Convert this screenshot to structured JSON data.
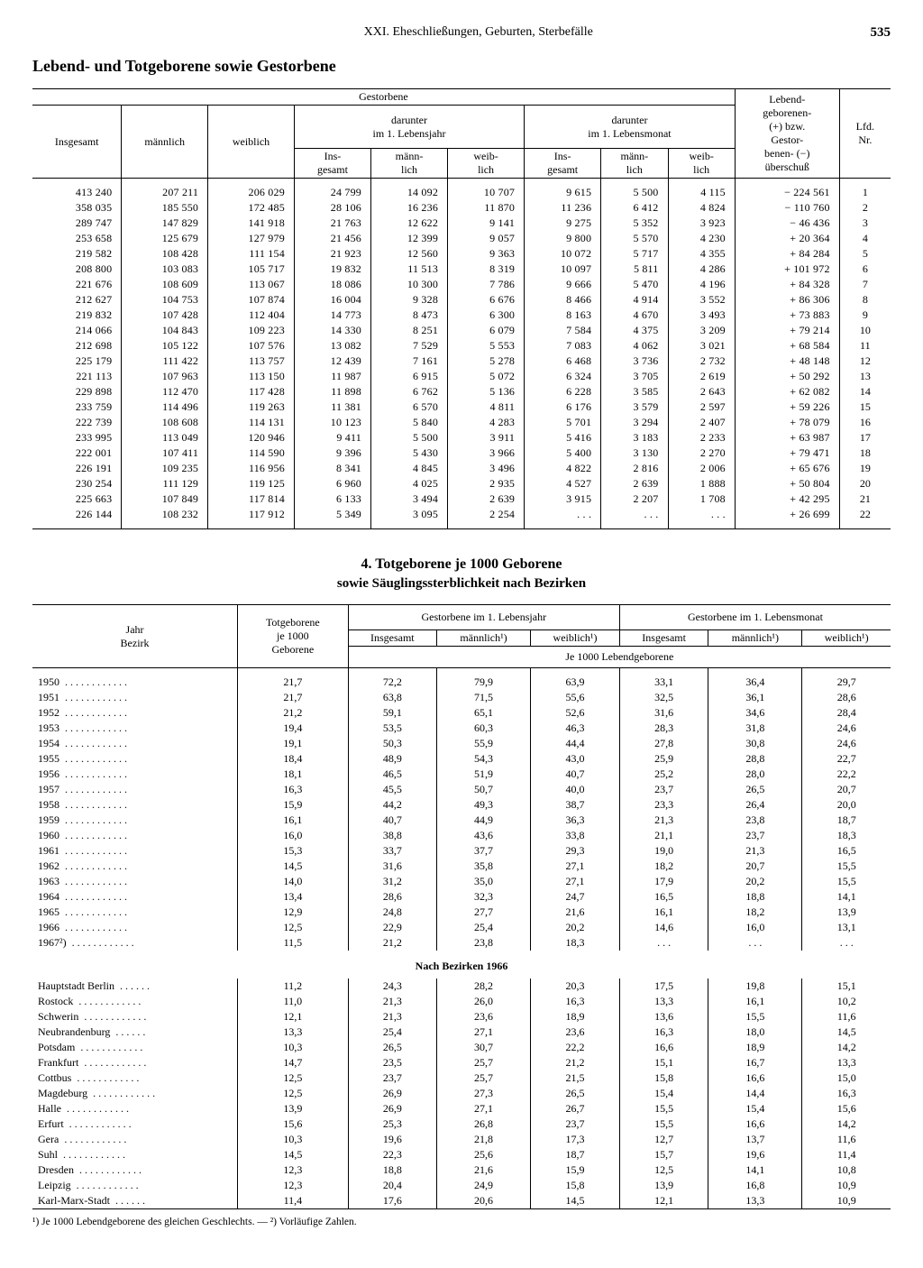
{
  "page": {
    "chapter": "XXI. Eheschließungen, Geburten, Sterbefälle",
    "number": "535",
    "title": "Lebend- und Totgeborene sowie Gestorbene"
  },
  "table1": {
    "headers": {
      "gestorbene": "Gestorbene",
      "insgesamt": "Insgesamt",
      "maennlich": "männlich",
      "weiblich": "weiblich",
      "darunter_jahr": "darunter\nim 1. Lebensjahr",
      "darunter_monat": "darunter\nim 1. Lebensmonat",
      "ins_gesamt": "Ins-\ngesamt",
      "maenn_lich": "männ-\nlich",
      "weib_lich": "weib-\nlich",
      "ueberschuss": "Lebend-\ngeborenen-\n(+) bzw.\nGestor-\nbenen- (−)\nüberschuß",
      "lfd": "Lfd.\nNr."
    },
    "rows": [
      [
        "413 240",
        "207 211",
        "206 029",
        "24 799",
        "14 092",
        "10 707",
        "9 615",
        "5 500",
        "4 115",
        "− 224 561",
        "1"
      ],
      [
        "358 035",
        "185 550",
        "172 485",
        "28 106",
        "16 236",
        "11 870",
        "11 236",
        "6 412",
        "4 824",
        "− 110 760",
        "2"
      ],
      [
        "289 747",
        "147 829",
        "141 918",
        "21 763",
        "12 622",
        "9 141",
        "9 275",
        "5 352",
        "3 923",
        "−  46 436",
        "3"
      ],
      [
        "253 658",
        "125 679",
        "127 979",
        "21 456",
        "12 399",
        "9 057",
        "9 800",
        "5 570",
        "4 230",
        "+  20 364",
        "4"
      ],
      [
        "219 582",
        "108 428",
        "111 154",
        "21 923",
        "12 560",
        "9 363",
        "10 072",
        "5 717",
        "4 355",
        "+  84 284",
        "5"
      ],
      [
        "208 800",
        "103 083",
        "105 717",
        "19 832",
        "11 513",
        "8 319",
        "10 097",
        "5 811",
        "4 286",
        "+ 101 972",
        "6"
      ],
      [
        "221 676",
        "108 609",
        "113 067",
        "18 086",
        "10 300",
        "7 786",
        "9 666",
        "5 470",
        "4 196",
        "+  84 328",
        "7"
      ],
      [
        "212 627",
        "104 753",
        "107 874",
        "16 004",
        "9 328",
        "6 676",
        "8 466",
        "4 914",
        "3 552",
        "+  86 306",
        "8"
      ],
      [
        "219 832",
        "107 428",
        "112 404",
        "14 773",
        "8 473",
        "6 300",
        "8 163",
        "4 670",
        "3 493",
        "+  73 883",
        "9"
      ],
      [
        "214 066",
        "104 843",
        "109 223",
        "14 330",
        "8 251",
        "6 079",
        "7 584",
        "4 375",
        "3 209",
        "+  79 214",
        "10"
      ],
      [
        "212 698",
        "105 122",
        "107 576",
        "13 082",
        "7 529",
        "5 553",
        "7 083",
        "4 062",
        "3 021",
        "+  68 584",
        "11"
      ],
      [
        "225 179",
        "111 422",
        "113 757",
        "12 439",
        "7 161",
        "5 278",
        "6 468",
        "3 736",
        "2 732",
        "+  48 148",
        "12"
      ],
      [
        "221 113",
        "107 963",
        "113 150",
        "11 987",
        "6 915",
        "5 072",
        "6 324",
        "3 705",
        "2 619",
        "+  50 292",
        "13"
      ],
      [
        "229 898",
        "112 470",
        "117 428",
        "11 898",
        "6 762",
        "5 136",
        "6 228",
        "3 585",
        "2 643",
        "+  62 082",
        "14"
      ],
      [
        "233 759",
        "114 496",
        "119 263",
        "11 381",
        "6 570",
        "4 811",
        "6 176",
        "3 579",
        "2 597",
        "+  59 226",
        "15"
      ],
      [
        "222 739",
        "108 608",
        "114 131",
        "10 123",
        "5 840",
        "4 283",
        "5 701",
        "3 294",
        "2 407",
        "+  78 079",
        "16"
      ],
      [
        "233 995",
        "113 049",
        "120 946",
        "9 411",
        "5 500",
        "3 911",
        "5 416",
        "3 183",
        "2 233",
        "+  63 987",
        "17"
      ],
      [
        "222 001",
        "107 411",
        "114 590",
        "9 396",
        "5 430",
        "3 966",
        "5 400",
        "3 130",
        "2 270",
        "+  79 471",
        "18"
      ],
      [
        "226 191",
        "109 235",
        "116 956",
        "8 341",
        "4 845",
        "3 496",
        "4 822",
        "2 816",
        "2 006",
        "+  65 676",
        "19"
      ],
      [
        "230 254",
        "111 129",
        "119 125",
        "6 960",
        "4 025",
        "2 935",
        "4 527",
        "2 639",
        "1 888",
        "+  50 804",
        "20"
      ],
      [
        "225 663",
        "107 849",
        "117 814",
        "6 133",
        "3 494",
        "2 639",
        "3 915",
        "2 207",
        "1 708",
        "+  42 295",
        "21"
      ],
      [
        "226 144",
        "108 232",
        "117 912",
        "5 349",
        "3 095",
        "2 254",
        ". . .",
        ". . .",
        ". . .",
        "+  26 699",
        "22"
      ]
    ]
  },
  "table2": {
    "title1": "4. Totgeborene je 1000 Geborene",
    "title2": "sowie Säuglingssterblichkeit nach Bezirken",
    "headers": {
      "jahr_bezirk": "Jahr\nBezirk",
      "totgeborene": "Totgeborene\nje 1000\nGeborene",
      "gest_jahr": "Gestorbene im 1. Lebensjahr",
      "gest_monat": "Gestorbene im 1. Lebensmonat",
      "insgesamt": "Insgesamt",
      "maennlich": "männlich¹)",
      "weiblich": "weiblich¹)",
      "je1000": "Je 1000 Lebendgeborene"
    },
    "section2_label": "Nach Bezirken 1966",
    "years": [
      [
        "1950",
        "21,7",
        "72,2",
        "79,9",
        "63,9",
        "33,1",
        "36,4",
        "29,7"
      ],
      [
        "1951",
        "21,7",
        "63,8",
        "71,5",
        "55,6",
        "32,5",
        "36,1",
        "28,6"
      ],
      [
        "1952",
        "21,2",
        "59,1",
        "65,1",
        "52,6",
        "31,6",
        "34,6",
        "28,4"
      ],
      [
        "1953",
        "19,4",
        "53,5",
        "60,3",
        "46,3",
        "28,3",
        "31,8",
        "24,6"
      ],
      [
        "1954",
        "19,1",
        "50,3",
        "55,9",
        "44,4",
        "27,8",
        "30,8",
        "24,6"
      ],
      [
        "1955",
        "18,4",
        "48,9",
        "54,3",
        "43,0",
        "25,9",
        "28,8",
        "22,7"
      ],
      [
        "1956",
        "18,1",
        "46,5",
        "51,9",
        "40,7",
        "25,2",
        "28,0",
        "22,2"
      ],
      [
        "1957",
        "16,3",
        "45,5",
        "50,7",
        "40,0",
        "23,7",
        "26,5",
        "20,7"
      ],
      [
        "1958",
        "15,9",
        "44,2",
        "49,3",
        "38,7",
        "23,3",
        "26,4",
        "20,0"
      ],
      [
        "1959",
        "16,1",
        "40,7",
        "44,9",
        "36,3",
        "21,3",
        "23,8",
        "18,7"
      ],
      [
        "1960",
        "16,0",
        "38,8",
        "43,6",
        "33,8",
        "21,1",
        "23,7",
        "18,3"
      ],
      [
        "1961",
        "15,3",
        "33,7",
        "37,7",
        "29,3",
        "19,0",
        "21,3",
        "16,5"
      ],
      [
        "1962",
        "14,5",
        "31,6",
        "35,8",
        "27,1",
        "18,2",
        "20,7",
        "15,5"
      ],
      [
        "1963",
        "14,0",
        "31,2",
        "35,0",
        "27,1",
        "17,9",
        "20,2",
        "15,5"
      ],
      [
        "1964",
        "13,4",
        "28,6",
        "32,3",
        "24,7",
        "16,5",
        "18,8",
        "14,1"
      ],
      [
        "1965",
        "12,9",
        "24,8",
        "27,7",
        "21,6",
        "16,1",
        "18,2",
        "13,9"
      ],
      [
        "1966",
        "12,5",
        "22,9",
        "25,4",
        "20,2",
        "14,6",
        "16,0",
        "13,1"
      ],
      [
        "1967²)",
        "11,5",
        "21,2",
        "23,8",
        "18,3",
        ". . .",
        ". . .",
        ". . ."
      ]
    ],
    "bezirke": [
      [
        "Hauptstadt Berlin",
        "11,2",
        "24,3",
        "28,2",
        "20,3",
        "17,5",
        "19,8",
        "15,1"
      ],
      [
        "Rostock",
        "11,0",
        "21,3",
        "26,0",
        "16,3",
        "13,3",
        "16,1",
        "10,2"
      ],
      [
        "Schwerin",
        "12,1",
        "21,3",
        "23,6",
        "18,9",
        "13,6",
        "15,5",
        "11,6"
      ],
      [
        "Neubrandenburg",
        "13,3",
        "25,4",
        "27,1",
        "23,6",
        "16,3",
        "18,0",
        "14,5"
      ],
      [
        "Potsdam",
        "10,3",
        "26,5",
        "30,7",
        "22,2",
        "16,6",
        "18,9",
        "14,2"
      ],
      [
        "Frankfurt",
        "14,7",
        "23,5",
        "25,7",
        "21,2",
        "15,1",
        "16,7",
        "13,3"
      ],
      [
        "Cottbus",
        "12,5",
        "23,7",
        "25,7",
        "21,5",
        "15,8",
        "16,6",
        "15,0"
      ],
      [
        "Magdeburg",
        "12,5",
        "26,9",
        "27,3",
        "26,5",
        "15,4",
        "14,4",
        "16,3"
      ],
      [
        "Halle",
        "13,9",
        "26,9",
        "27,1",
        "26,7",
        "15,5",
        "15,4",
        "15,6"
      ],
      [
        "Erfurt",
        "15,6",
        "25,3",
        "26,8",
        "23,7",
        "15,5",
        "16,6",
        "14,2"
      ],
      [
        "Gera",
        "10,3",
        "19,6",
        "21,8",
        "17,3",
        "12,7",
        "13,7",
        "11,6"
      ],
      [
        "Suhl",
        "14,5",
        "22,3",
        "25,6",
        "18,7",
        "15,7",
        "19,6",
        "11,4"
      ],
      [
        "Dresden",
        "12,3",
        "18,8",
        "21,6",
        "15,9",
        "12,5",
        "14,1",
        "10,8"
      ],
      [
        "Leipzig",
        "12,3",
        "20,4",
        "24,9",
        "15,8",
        "13,9",
        "16,8",
        "10,9"
      ],
      [
        "Karl-Marx-Stadt",
        "11,4",
        "17,6",
        "20,6",
        "14,5",
        "12,1",
        "13,3",
        "10,9"
      ]
    ],
    "footnote": "¹) Je 1000 Lebendgeborene des gleichen Geschlechts. —  ²) Vorläufige Zahlen."
  }
}
